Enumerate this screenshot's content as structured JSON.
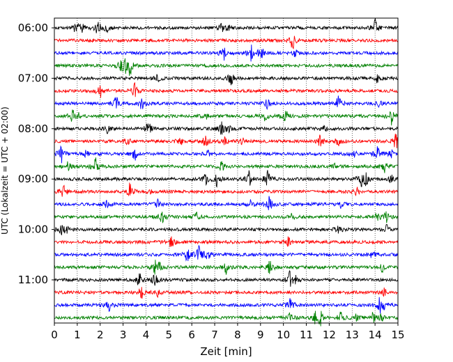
{
  "chart_data": {
    "type": "line",
    "title": "",
    "xlabel": "Zeit  [min]",
    "ylabel": "UTC (Lokalzeit = UTC + 02:00)",
    "xlim": [
      0,
      15
    ],
    "x_ticks": [
      "0",
      "1",
      "2",
      "3",
      "4",
      "5",
      "6",
      "7",
      "8",
      "9",
      "10",
      "11",
      "12",
      "13",
      "14",
      "15"
    ],
    "y_tick_labels": [
      "06:00",
      "07:00",
      "08:00",
      "09:00",
      "10:00",
      "11:00"
    ],
    "trace_interval_min": 15,
    "grid": "vertical dotted lines at each minute",
    "legend": "none",
    "trace_colors": [
      "#000000",
      "#ff0000",
      "#0000ff",
      "#008000"
    ],
    "traces": [
      {
        "label": "06:00",
        "events": [
          [
            0.9,
            0.4
          ],
          [
            1.1,
            0.5
          ],
          [
            1.2,
            0.3
          ],
          [
            1.9,
            0.9
          ],
          [
            2.3,
            0.5
          ],
          [
            7.3,
            0.4
          ],
          [
            7.6,
            0.3
          ],
          [
            14.0,
            1.0
          ]
        ]
      },
      {
        "label": "06:15",
        "events": [
          [
            10.4,
            0.9
          ]
        ]
      },
      {
        "label": "06:30",
        "events": [
          [
            7.4,
            0.8
          ],
          [
            8.6,
            0.9
          ],
          [
            9.1,
            0.4
          ],
          [
            9.0,
            0.5
          ],
          [
            10.5,
            0.4
          ]
        ]
      },
      {
        "label": "06:45",
        "events": [
          [
            2.9,
            0.8
          ],
          [
            3.3,
            1.0
          ],
          [
            3.1,
            0.5
          ]
        ]
      },
      {
        "label": "07:00",
        "events": [
          [
            4.5,
            0.4
          ],
          [
            7.7,
            0.9
          ],
          [
            14.1,
            0.4
          ]
        ]
      },
      {
        "label": "07:15",
        "events": [
          [
            2.0,
            0.9
          ],
          [
            3.5,
            0.8
          ]
        ]
      },
      {
        "label": "07:30",
        "events": [
          [
            2.7,
            0.8
          ],
          [
            3.8,
            0.9
          ],
          [
            9.3,
            0.5
          ],
          [
            12.4,
            0.9
          ],
          [
            14.2,
            0.3
          ]
        ]
      },
      {
        "label": "07:45",
        "events": [
          [
            0.8,
            0.7
          ],
          [
            1.0,
            0.4
          ],
          [
            6.6,
            0.4
          ],
          [
            9.2,
            0.5
          ],
          [
            10.1,
            0.9
          ],
          [
            14.7,
            1.0
          ]
        ]
      },
      {
        "label": "08:00",
        "events": [
          [
            2.3,
            0.5
          ],
          [
            4.1,
            0.9
          ],
          [
            7.3,
            0.7
          ],
          [
            7.6,
            0.4
          ],
          [
            11.8,
            0.3
          ]
        ]
      },
      {
        "label": "08:15",
        "events": [
          [
            3.2,
            0.4
          ],
          [
            5.5,
            0.5
          ],
          [
            6.6,
            0.8
          ],
          [
            7.4,
            0.5
          ],
          [
            8.2,
            0.3
          ],
          [
            11.6,
            0.9
          ],
          [
            12.4,
            0.7
          ],
          [
            14.9,
            1.0
          ]
        ]
      },
      {
        "label": "08:30",
        "events": [
          [
            0.3,
            0.9
          ],
          [
            1.4,
            0.4
          ],
          [
            3.5,
            0.7
          ],
          [
            6.7,
            0.4
          ],
          [
            13.1,
            0.3
          ],
          [
            14.1,
            0.8
          ],
          [
            14.7,
            0.5
          ]
        ]
      },
      {
        "label": "08:45",
        "events": [
          [
            0.6,
            0.5
          ],
          [
            1.8,
            0.9
          ],
          [
            7.3,
            0.6
          ],
          [
            12.3,
            0.5
          ],
          [
            14.4,
            0.6
          ]
        ]
      },
      {
        "label": "09:00",
        "events": [
          [
            6.6,
            0.5
          ],
          [
            7.1,
            0.7
          ],
          [
            8.5,
            0.8
          ],
          [
            9.3,
            1.0
          ],
          [
            13.4,
            0.9
          ],
          [
            13.6,
            0.6
          ],
          [
            14.7,
            0.4
          ]
        ]
      },
      {
        "label": "09:15",
        "events": [
          [
            0.4,
            0.8
          ],
          [
            3.3,
            0.9
          ],
          [
            4.2,
            0.3
          ],
          [
            13.2,
            0.4
          ]
        ]
      },
      {
        "label": "09:30",
        "events": [
          [
            2.3,
            0.4
          ],
          [
            4.5,
            0.5
          ],
          [
            8.6,
            0.5
          ],
          [
            9.4,
            0.9
          ],
          [
            12.5,
            0.4
          ]
        ]
      },
      {
        "label": "09:45",
        "events": [
          [
            4.7,
            0.9
          ],
          [
            6.2,
            0.4
          ],
          [
            10.4,
            0.4
          ],
          [
            14.1,
            0.4
          ],
          [
            14.5,
            0.7
          ]
        ]
      },
      {
        "label": "10:00",
        "events": [
          [
            0.3,
            0.5
          ],
          [
            0.5,
            0.4
          ],
          [
            12.4,
            0.6
          ],
          [
            14.5,
            0.4
          ]
        ]
      },
      {
        "label": "10:15",
        "events": [
          [
            5.1,
            0.7
          ],
          [
            10.2,
            0.8
          ]
        ]
      },
      {
        "label": "10:30",
        "events": [
          [
            5.8,
            0.7
          ],
          [
            6.3,
            1.0
          ],
          [
            6.7,
            0.6
          ],
          [
            13.9,
            0.5
          ]
        ]
      },
      {
        "label": "10:45",
        "events": [
          [
            4.4,
            0.8
          ],
          [
            4.6,
            0.4
          ],
          [
            7.5,
            0.7
          ],
          [
            9.4,
            1.0
          ],
          [
            14.3,
            0.5
          ]
        ]
      },
      {
        "label": "11:00",
        "events": [
          [
            3.7,
            0.8
          ],
          [
            4.4,
            0.9
          ],
          [
            10.3,
            1.0
          ],
          [
            10.5,
            0.5
          ]
        ]
      },
      {
        "label": "11:15",
        "events": [
          [
            3.8,
            0.8
          ],
          [
            4.5,
            0.4
          ],
          [
            14.4,
            0.4
          ]
        ]
      },
      {
        "label": "11:30",
        "events": [
          [
            2.4,
            0.9
          ],
          [
            10.3,
            0.7
          ],
          [
            14.2,
            0.9
          ],
          [
            14.4,
            0.5
          ]
        ]
      },
      {
        "label": "11:45",
        "events": [
          [
            10.3,
            0.5
          ],
          [
            11.4,
            0.7
          ],
          [
            11.6,
            0.8
          ],
          [
            12.5,
            0.6
          ],
          [
            13.2,
            0.4
          ],
          [
            13.9,
            0.8
          ],
          [
            14.3,
            0.5
          ]
        ]
      }
    ]
  }
}
